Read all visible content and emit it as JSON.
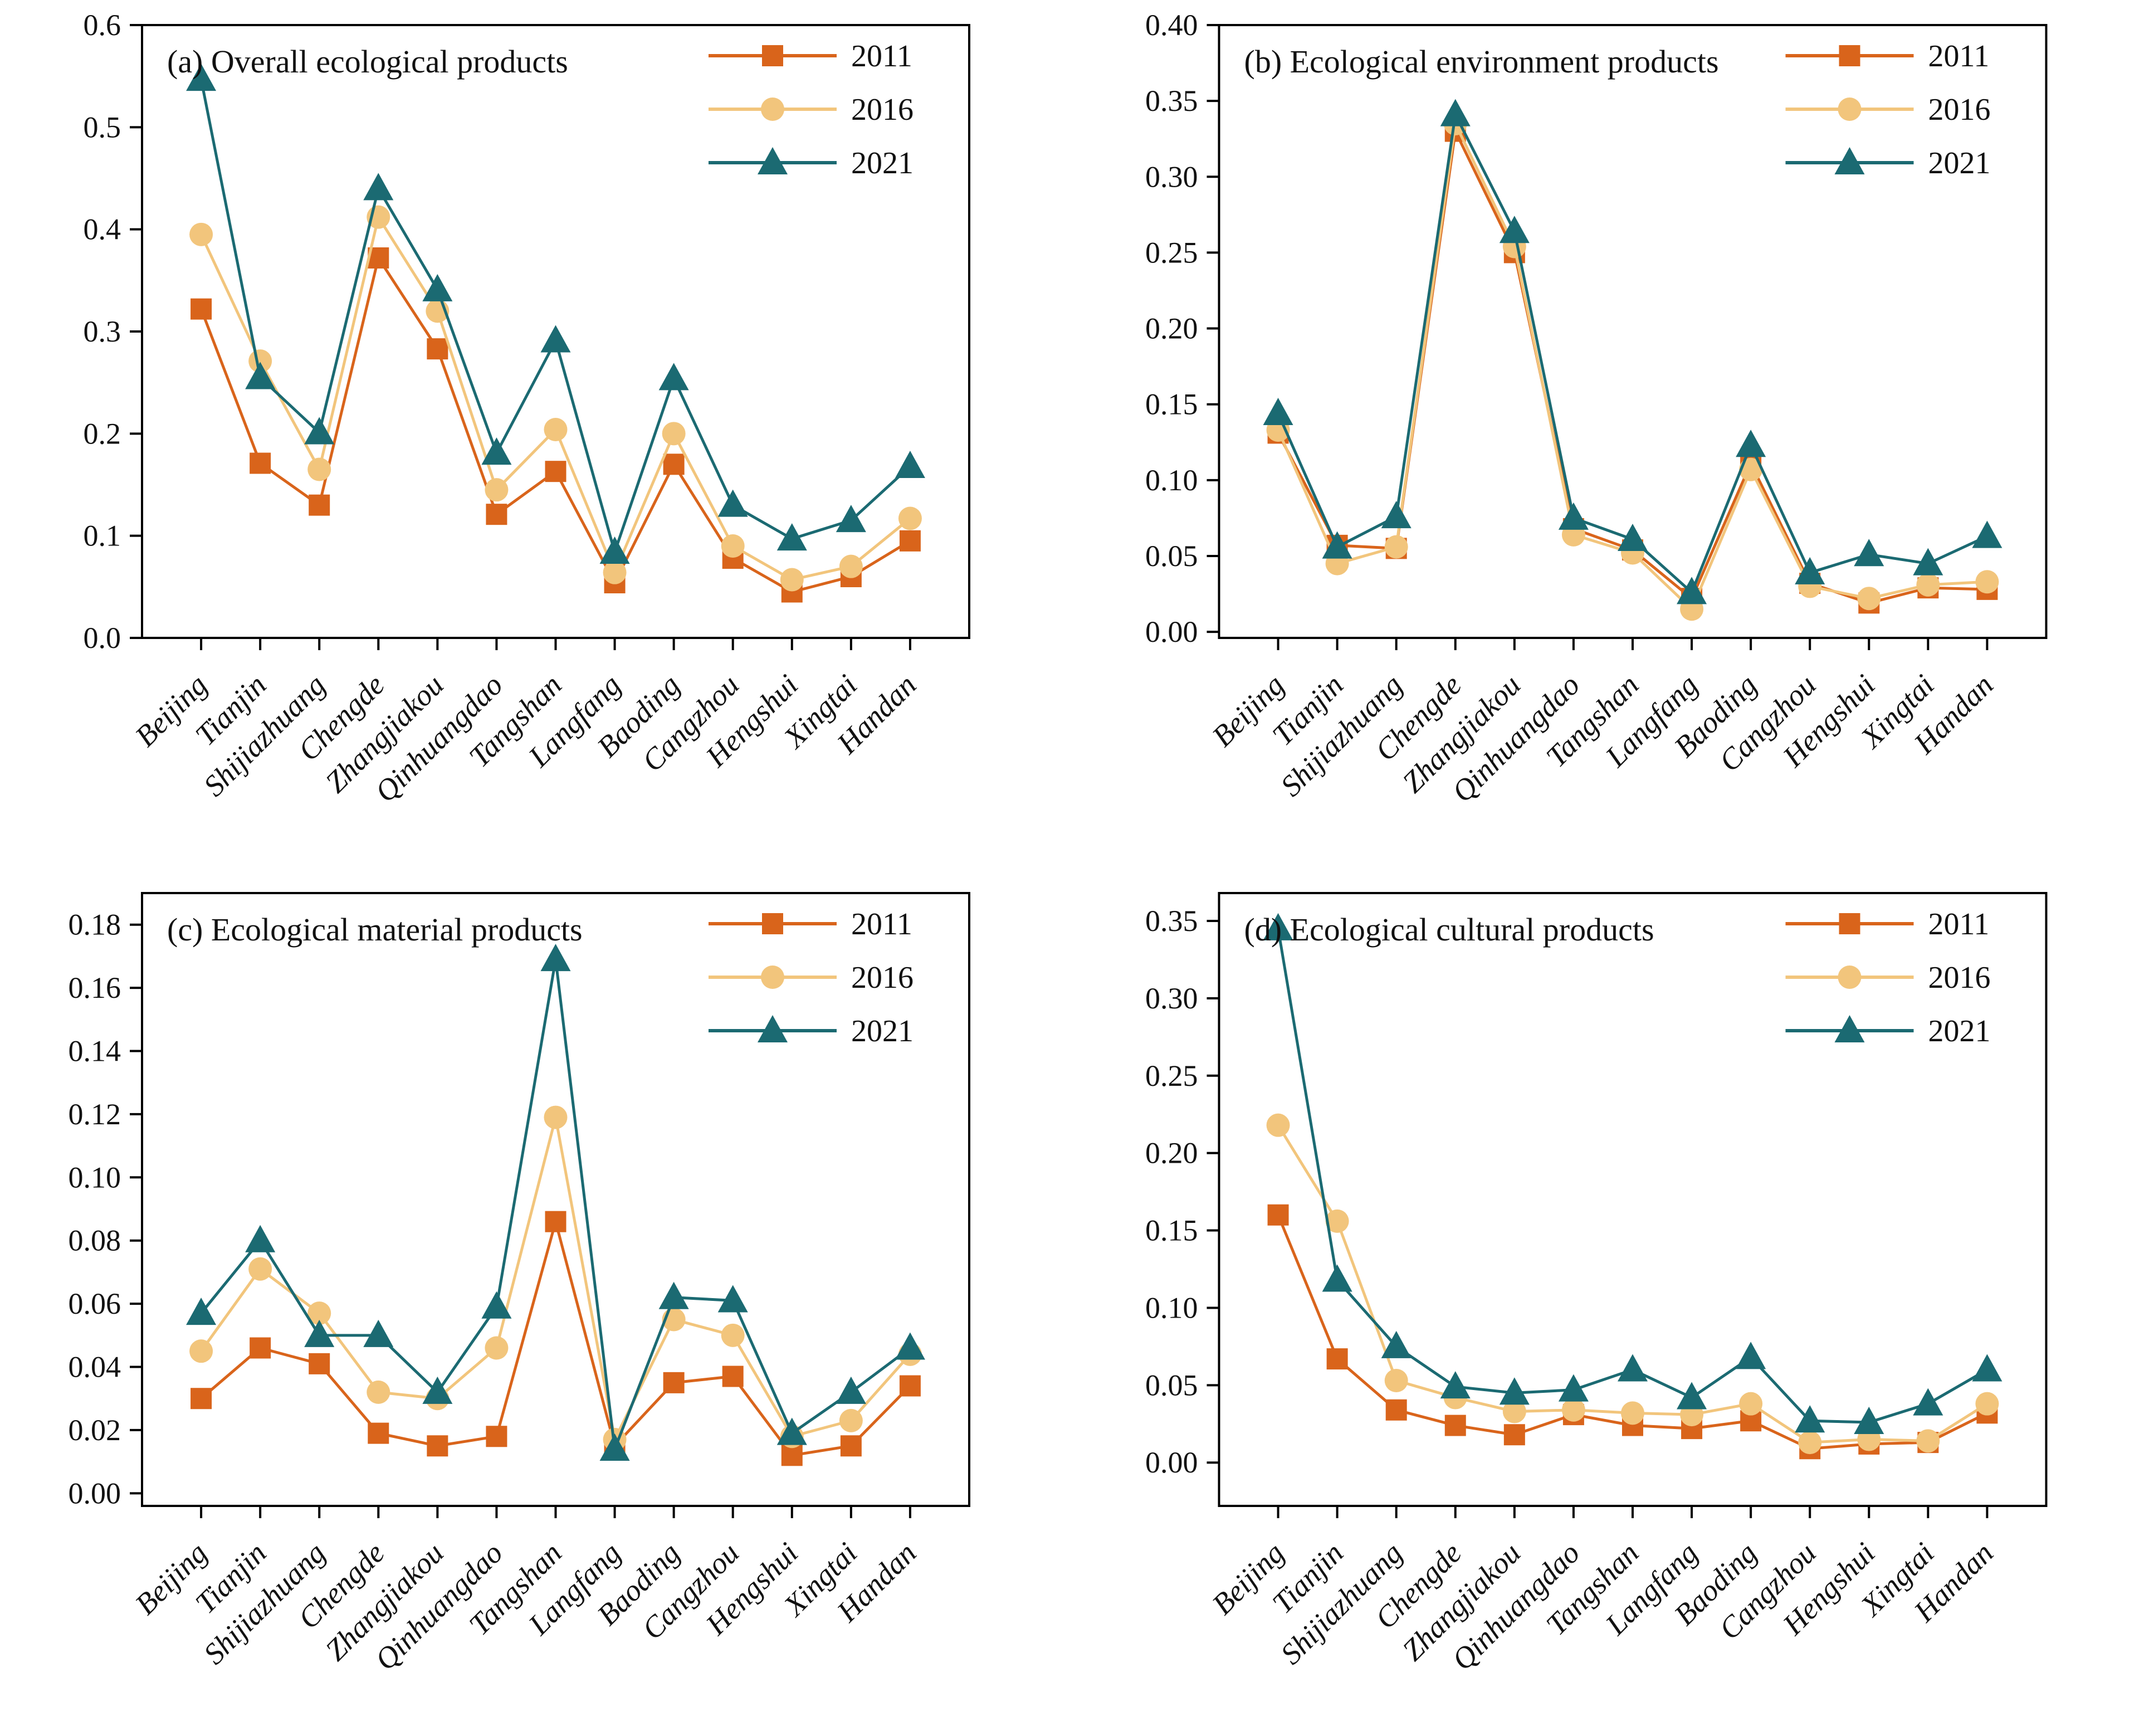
{
  "figure": {
    "background": "#ffffff",
    "text_color": "#111111",
    "axis_color": "#000000",
    "series_colors": {
      "y2011": "#d9641b",
      "y2016": "#f2c57c",
      "y2021": "#1b6a72"
    },
    "legend_items": [
      "2011",
      "2016",
      "2021"
    ]
  },
  "chart_data": [
    {
      "panel": "a",
      "type": "line",
      "title": "(a) Overall ecological products",
      "categories": [
        "Beijing",
        "Tianjin",
        "Shijiazhuang",
        "Chengde",
        "Zhangjiakou",
        "Qinhuangdao",
        "Tangshan",
        "Langfang",
        "Baoding",
        "Cangzhou",
        "Hengshui",
        "Xingtai",
        "Handan"
      ],
      "xlabel": "",
      "ylabel": "",
      "ylim": [
        0,
        0.6
      ],
      "yticks": [
        0.0,
        0.1,
        0.2,
        0.3,
        0.4,
        0.5,
        0.6
      ],
      "ytick_labels": [
        "0.0",
        "0.1",
        "0.2",
        "0.3",
        "0.4",
        "0.5",
        "0.6"
      ],
      "grid": false,
      "legend_position": "top-right",
      "series": [
        {
          "name": "2011",
          "marker": "square",
          "color": "#d9641b",
          "values": [
            0.322,
            0.171,
            0.13,
            0.372,
            0.283,
            0.121,
            0.163,
            0.054,
            0.17,
            0.078,
            0.045,
            0.06,
            0.095
          ]
        },
        {
          "name": "2016",
          "marker": "circle",
          "color": "#f2c57c",
          "values": [
            0.395,
            0.271,
            0.165,
            0.412,
            0.32,
            0.145,
            0.204,
            0.064,
            0.2,
            0.09,
            0.057,
            0.07,
            0.117
          ]
        },
        {
          "name": "2021",
          "marker": "triangle",
          "color": "#1b6a72",
          "values": [
            0.547,
            0.255,
            0.201,
            0.44,
            0.341,
            0.181,
            0.291,
            0.084,
            0.254,
            0.13,
            0.097,
            0.115,
            0.168
          ]
        }
      ]
    },
    {
      "panel": "b",
      "type": "line",
      "title": "(b) Ecological environment products",
      "categories": [
        "Beijing",
        "Tianjin",
        "Shijiazhuang",
        "Chengde",
        "Zhangjiakou",
        "Qinhuangdao",
        "Tangshan",
        "Langfang",
        "Baoding",
        "Cangzhou",
        "Hengshui",
        "Xingtai",
        "Handan"
      ],
      "xlabel": "",
      "ylabel": "",
      "ylim": [
        -0.004,
        0.4
      ],
      "yticks": [
        0.0,
        0.05,
        0.1,
        0.15,
        0.2,
        0.25,
        0.3,
        0.35,
        0.4
      ],
      "ytick_labels": [
        "0.00",
        "0.05",
        "0.10",
        "0.15",
        "0.20",
        "0.25",
        "0.30",
        "0.35",
        "0.40"
      ],
      "grid": false,
      "legend_position": "top-right",
      "series": [
        {
          "name": "2011",
          "marker": "square",
          "color": "#d9641b",
          "values": [
            0.131,
            0.057,
            0.055,
            0.33,
            0.25,
            0.068,
            0.054,
            0.022,
            0.111,
            0.032,
            0.019,
            0.029,
            0.028
          ]
        },
        {
          "name": "2016",
          "marker": "circle",
          "color": "#f2c57c",
          "values": [
            0.133,
            0.045,
            0.056,
            0.335,
            0.254,
            0.064,
            0.052,
            0.015,
            0.107,
            0.03,
            0.022,
            0.031,
            0.033
          ]
        },
        {
          "name": "2021",
          "marker": "triangle",
          "color": "#1b6a72",
          "values": [
            0.144,
            0.056,
            0.076,
            0.341,
            0.264,
            0.075,
            0.061,
            0.026,
            0.123,
            0.039,
            0.051,
            0.045,
            0.063
          ]
        }
      ]
    },
    {
      "panel": "c",
      "type": "line",
      "title": "(c) Ecological material products",
      "categories": [
        "Beijing",
        "Tianjin",
        "Shijiazhuang",
        "Chengde",
        "Zhangjiakou",
        "Qinhuangdao",
        "Tangshan",
        "Langfang",
        "Baoding",
        "Cangzhou",
        "Hengshui",
        "Xingtai",
        "Handan"
      ],
      "xlabel": "",
      "ylabel": "",
      "ylim": [
        -0.004,
        0.19
      ],
      "yticks": [
        0.0,
        0.02,
        0.04,
        0.06,
        0.08,
        0.1,
        0.12,
        0.14,
        0.16,
        0.18
      ],
      "ytick_labels": [
        "0.00",
        "0.02",
        "0.04",
        "0.06",
        "0.08",
        "0.10",
        "0.12",
        "0.14",
        "0.16",
        "0.18"
      ],
      "grid": false,
      "legend_position": "top-right",
      "series": [
        {
          "name": "2011",
          "marker": "square",
          "color": "#d9641b",
          "values": [
            0.03,
            0.046,
            0.041,
            0.019,
            0.015,
            0.018,
            0.086,
            0.015,
            0.035,
            0.037,
            0.012,
            0.015,
            0.034
          ]
        },
        {
          "name": "2016",
          "marker": "circle",
          "color": "#f2c57c",
          "values": [
            0.045,
            0.071,
            0.057,
            0.032,
            0.03,
            0.046,
            0.119,
            0.017,
            0.055,
            0.05,
            0.018,
            0.023,
            0.044
          ]
        },
        {
          "name": "2021",
          "marker": "triangle",
          "color": "#1b6a72",
          "values": [
            0.057,
            0.08,
            0.05,
            0.05,
            0.032,
            0.059,
            0.169,
            0.014,
            0.062,
            0.061,
            0.019,
            0.032,
            0.046
          ]
        }
      ]
    },
    {
      "panel": "d",
      "type": "line",
      "title": "(d) Ecological cultural products",
      "categories": [
        "Beijing",
        "Tianjin",
        "Shijiazhuang",
        "Chengde",
        "Zhangjiakou",
        "Qinhuangdao",
        "Tangshan",
        "Langfang",
        "Baoding",
        "Cangzhou",
        "Hengshui",
        "Xingtai",
        "Handan"
      ],
      "xlabel": "",
      "ylabel": "",
      "ylim": [
        -0.028,
        0.368
      ],
      "yticks": [
        0.0,
        0.05,
        0.1,
        0.15,
        0.2,
        0.25,
        0.3,
        0.35
      ],
      "ytick_labels": [
        "0.00",
        "0.05",
        "0.10",
        "0.15",
        "0.20",
        "0.25",
        "0.30",
        "0.35"
      ],
      "grid": false,
      "legend_position": "top-right",
      "series": [
        {
          "name": "2011",
          "marker": "square",
          "color": "#d9641b",
          "values": [
            0.16,
            0.067,
            0.034,
            0.024,
            0.018,
            0.031,
            0.024,
            0.022,
            0.027,
            0.009,
            0.012,
            0.013,
            0.032
          ]
        },
        {
          "name": "2016",
          "marker": "circle",
          "color": "#f2c57c",
          "values": [
            0.218,
            0.156,
            0.053,
            0.042,
            0.033,
            0.034,
            0.032,
            0.031,
            0.038,
            0.013,
            0.015,
            0.014,
            0.038
          ]
        },
        {
          "name": "2021",
          "marker": "triangle",
          "color": "#1b6a72",
          "values": [
            0.345,
            0.118,
            0.075,
            0.049,
            0.045,
            0.047,
            0.06,
            0.042,
            0.068,
            0.027,
            0.026,
            0.038,
            0.06
          ]
        }
      ]
    }
  ]
}
